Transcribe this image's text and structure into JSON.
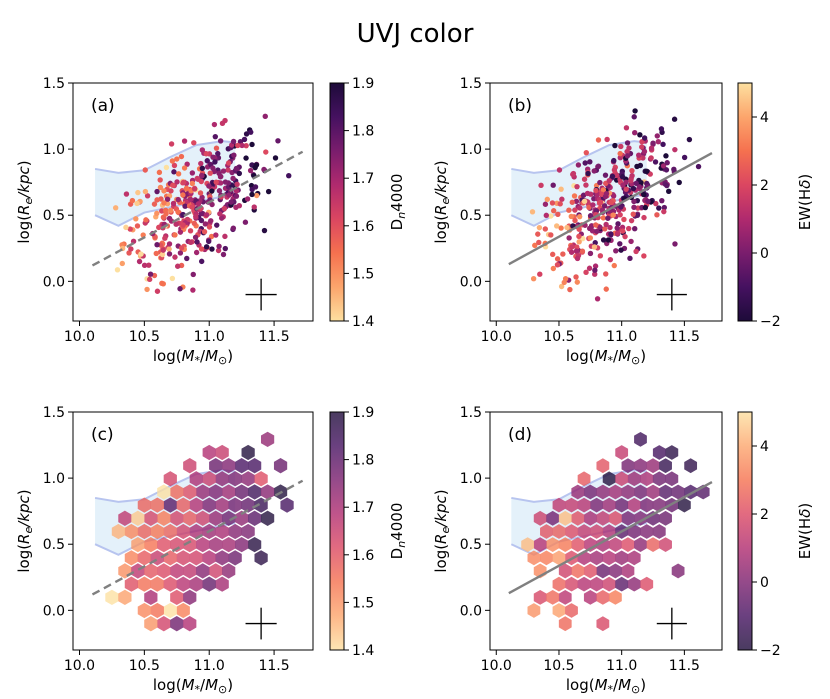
{
  "figure": {
    "title": "UVJ color"
  },
  "chart_data": [
    {
      "panel": "(a)",
      "type": "scatter",
      "xlabel": "log(M_*/M_⊙)",
      "ylabel": "log(R_e/kpc)",
      "xlim": [
        9.95,
        11.8
      ],
      "ylim": [
        -0.3,
        1.5
      ],
      "xticks": [
        "10.0",
        "10.5",
        "11.0",
        "11.5"
      ],
      "yticks": [
        "0.0",
        "0.5",
        "1.0",
        "1.5"
      ],
      "color_variable": "D_n4000",
      "colorbar": {
        "label": "D_n4000",
        "range": [
          1.4,
          1.9
        ],
        "ticks": [
          "1.4",
          "1.5",
          "1.6",
          "1.7",
          "1.8",
          "1.9"
        ],
        "reversed": false
      },
      "relation_line": {
        "style": "dashed",
        "x": [
          10.1,
          11.72
        ],
        "y": [
          0.12,
          0.98
        ]
      },
      "envelope": {
        "x": [
          10.12,
          10.3,
          10.5,
          10.7,
          10.9,
          11.1,
          11.2
        ],
        "upper": [
          0.85,
          0.82,
          0.84,
          0.94,
          1.03,
          1.06,
          1.05
        ],
        "lower": [
          0.5,
          0.42,
          0.52,
          0.56,
          0.6,
          0.64,
          0.66
        ]
      },
      "error_cross": {
        "x": 11.4,
        "y": -0.1,
        "dx": 0.12,
        "dy": 0.12
      },
      "points": []
    },
    {
      "panel": "(b)",
      "type": "scatter",
      "xlabel": "log(M_*/M_⊙)",
      "ylabel": "log(R_e/kpc)",
      "xlim": [
        9.95,
        11.8
      ],
      "ylim": [
        -0.3,
        1.5
      ],
      "xticks": [
        "10.0",
        "10.5",
        "11.0",
        "11.5"
      ],
      "yticks": [
        "0.0",
        "0.5",
        "1.0",
        "1.5"
      ],
      "color_variable": "EW(Hδ)",
      "colorbar": {
        "label": "EW(Hδ)",
        "range": [
          -2,
          5
        ],
        "ticks": [
          "−2",
          "0",
          "2",
          "4"
        ],
        "reversed": true
      },
      "relation_line": {
        "style": "solid",
        "x": [
          10.1,
          11.72
        ],
        "y": [
          0.13,
          0.97
        ]
      },
      "envelope": {
        "x": [
          10.12,
          10.3,
          10.5,
          10.7,
          10.9,
          11.1,
          11.2
        ],
        "upper": [
          0.85,
          0.82,
          0.84,
          0.94,
          1.03,
          1.06,
          1.05
        ],
        "lower": [
          0.5,
          0.42,
          0.52,
          0.56,
          0.6,
          0.64,
          0.66
        ]
      },
      "error_cross": {
        "x": 11.4,
        "y": -0.1,
        "dx": 0.12,
        "dy": 0.12
      },
      "points": []
    },
    {
      "panel": "(c)",
      "type": "heatmap",
      "xlabel": "log(M_*/M_⊙)",
      "ylabel": "log(R_e/kpc)",
      "xlim": [
        9.95,
        11.8
      ],
      "ylim": [
        -0.3,
        1.5
      ],
      "xticks": [
        "10.0",
        "10.5",
        "11.0",
        "11.5"
      ],
      "yticks": [
        "0.0",
        "0.5",
        "1.0",
        "1.5"
      ],
      "color_variable": "D_n4000",
      "colorbar": {
        "label": "D_n4000",
        "range": [
          1.4,
          1.9
        ],
        "ticks": [
          "1.4",
          "1.5",
          "1.6",
          "1.7",
          "1.8",
          "1.9"
        ],
        "reversed": false
      },
      "relation_line": {
        "style": "dashed",
        "x": [
          10.1,
          11.72
        ],
        "y": [
          0.12,
          0.98
        ]
      },
      "envelope": {
        "x": [
          10.12,
          10.3,
          10.5,
          10.7,
          10.9,
          11.1,
          11.2
        ],
        "upper": [
          0.85,
          0.82,
          0.84,
          0.94,
          1.03,
          1.06,
          1.05
        ],
        "lower": [
          0.5,
          0.42,
          0.52,
          0.56,
          0.6,
          0.64,
          0.66
        ]
      },
      "error_cross": {
        "x": 11.4,
        "y": -0.1,
        "dx": 0.12,
        "dy": 0.12
      },
      "hex_bins": []
    },
    {
      "panel": "(d)",
      "type": "heatmap",
      "xlabel": "log(M_*/M_⊙)",
      "ylabel": "log(R_e/kpc)",
      "xlim": [
        9.95,
        11.8
      ],
      "ylim": [
        -0.3,
        1.5
      ],
      "xticks": [
        "10.0",
        "10.5",
        "11.0",
        "11.5"
      ],
      "yticks": [
        "0.0",
        "0.5",
        "1.0",
        "1.5"
      ],
      "color_variable": "EW(Hδ)",
      "colorbar": {
        "label": "EW(Hδ)",
        "range": [
          -2,
          5
        ],
        "ticks": [
          "−2",
          "0",
          "2",
          "4"
        ],
        "reversed": true
      },
      "relation_line": {
        "style": "solid",
        "x": [
          10.1,
          11.72
        ],
        "y": [
          0.13,
          0.97
        ]
      },
      "envelope": {
        "x": [
          10.12,
          10.3,
          10.5,
          10.7,
          10.9,
          11.1,
          11.2
        ],
        "upper": [
          0.85,
          0.82,
          0.84,
          0.94,
          1.03,
          1.06,
          1.05
        ],
        "lower": [
          0.5,
          0.42,
          0.52,
          0.56,
          0.6,
          0.64,
          0.66
        ]
      },
      "error_cross": {
        "x": 11.4,
        "y": -0.1,
        "dx": 0.12,
        "dy": 0.12
      },
      "hex_bins": []
    }
  ],
  "colors": {
    "envelope_fill": "#e4f1fa",
    "envelope_line": "#b7c4ef",
    "relation_line": "#808080",
    "magma_stops": [
      "#fde0a0",
      "#fca56c",
      "#f5714f",
      "#db4661",
      "#b02a6e",
      "#7a1d6d",
      "#451160",
      "#1d0b39"
    ]
  }
}
